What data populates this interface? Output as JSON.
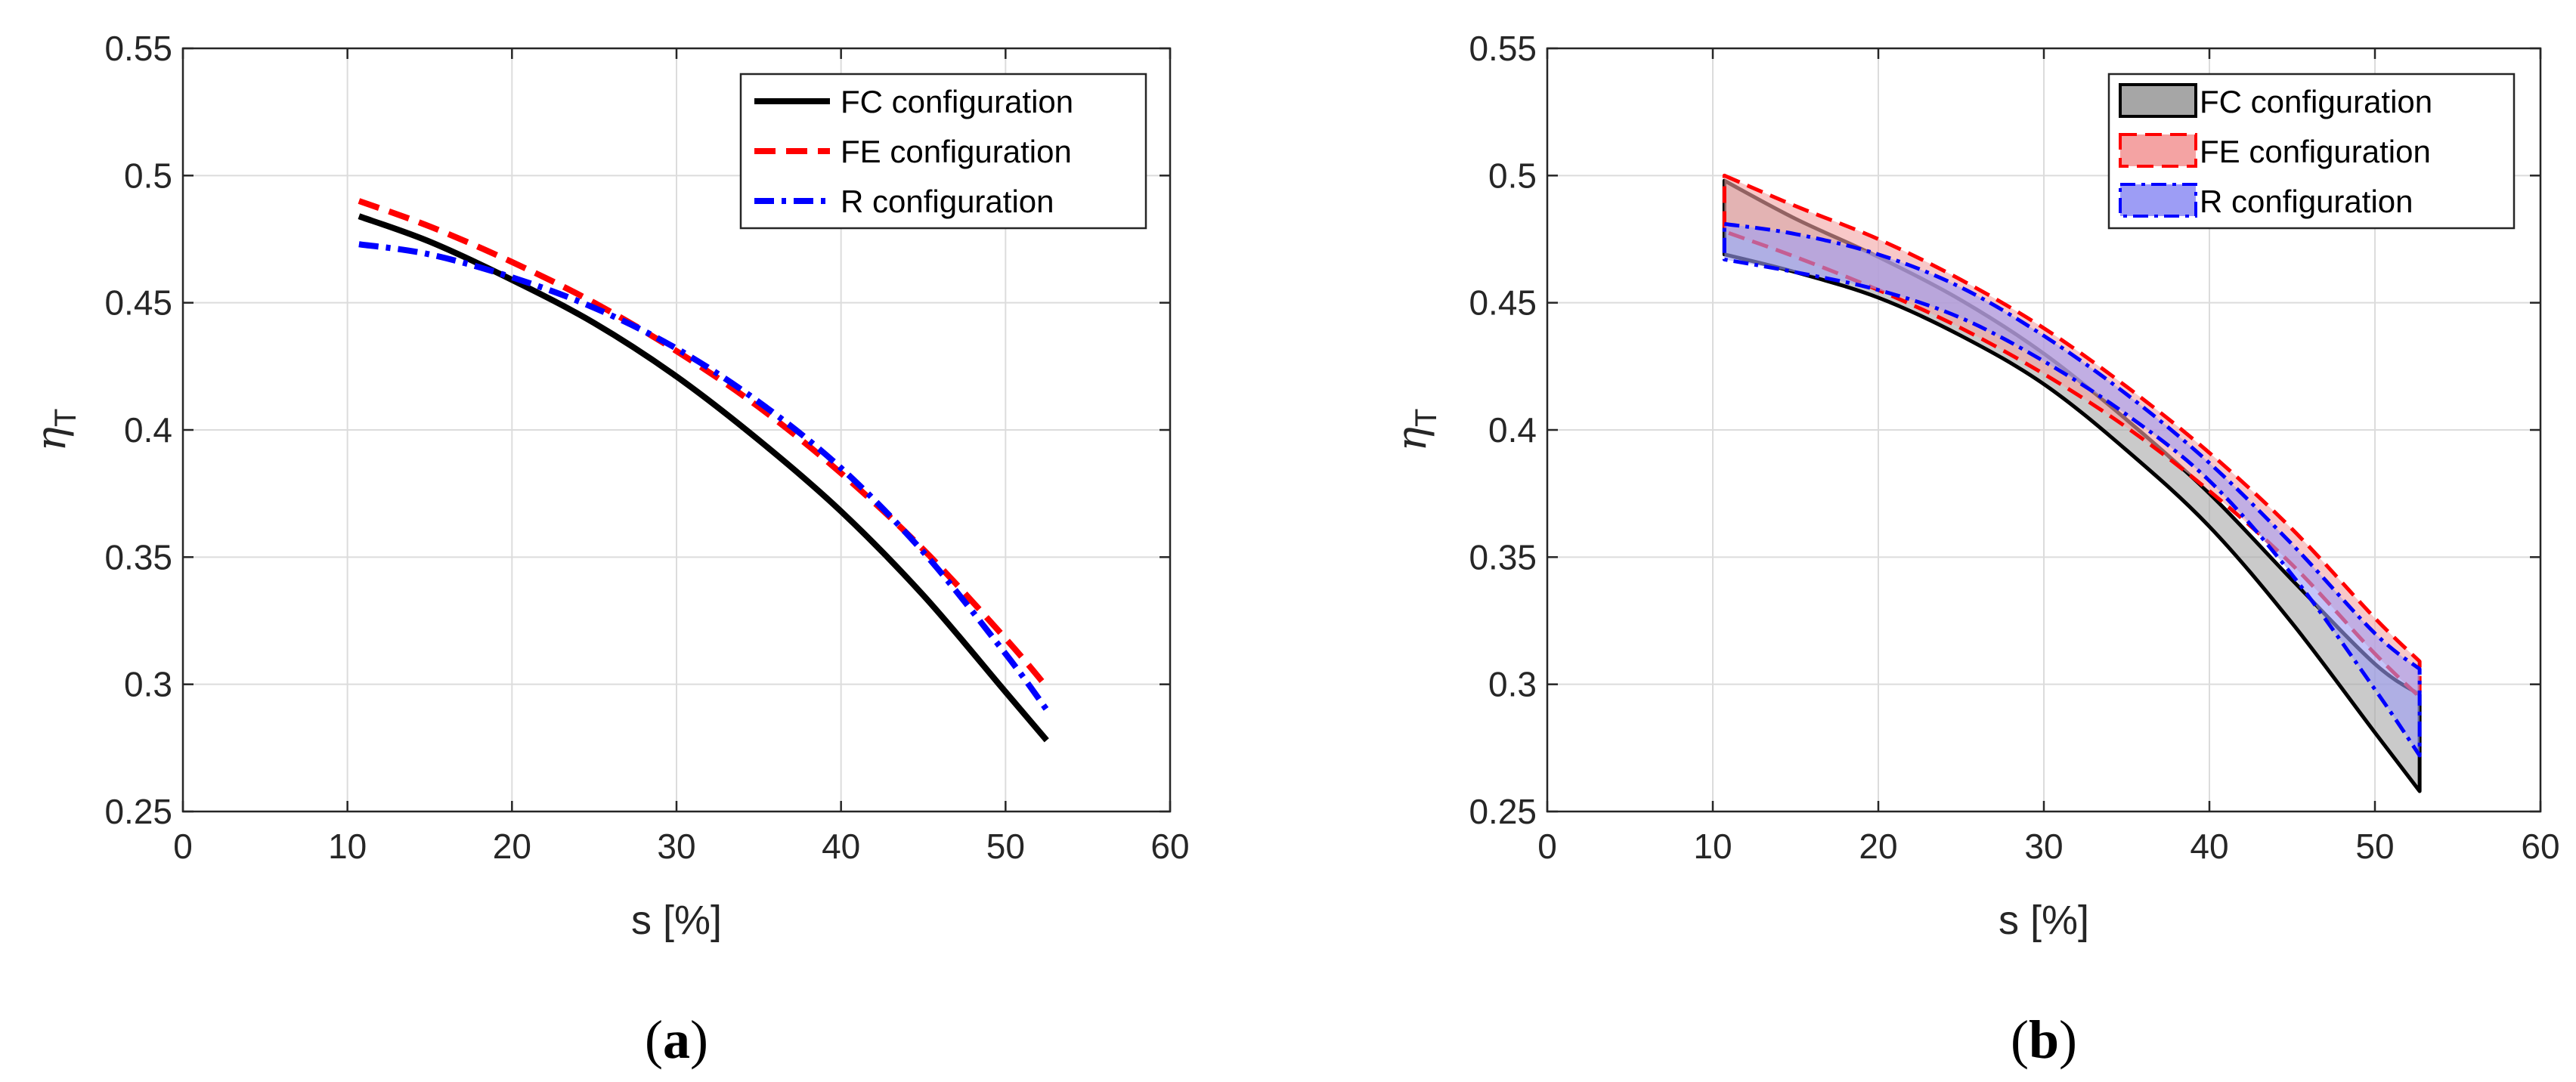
{
  "colors": {
    "FC": "#000000",
    "FE": "#ff0000",
    "R": "#0000ff",
    "FC_fill": "#a6a6a6",
    "FE_fill": "#f4a3a3",
    "R_fill": "#9d9df5",
    "grid": "#dcdcdc",
    "axis": "#262626"
  },
  "chart_data": [
    {
      "type": "line",
      "panel": "a",
      "caption_letter": "a",
      "caption_open": "(",
      "caption_close": ")",
      "xlabel": "s [%]",
      "ylabel_main": "η",
      "ylabel_sub": "T",
      "xlim": [
        0,
        60
      ],
      "ylim": [
        0.25,
        0.55
      ],
      "xticks": [
        0,
        10,
        20,
        30,
        40,
        50,
        60
      ],
      "xtick_labels": [
        "0",
        "10",
        "20",
        "30",
        "40",
        "50",
        "60"
      ],
      "yticks": [
        0.25,
        0.3,
        0.35,
        0.4,
        0.45,
        0.5,
        0.55
      ],
      "ytick_labels": [
        "0.25",
        "0.3",
        "0.35",
        "0.4",
        "0.45",
        "0.5",
        "0.55"
      ],
      "grid": true,
      "legend": "top-right",
      "x": [
        10.7,
        15,
        20,
        25,
        30,
        35,
        40,
        45,
        50,
        52.5
      ],
      "series": [
        {
          "key": "FC",
          "name": "FC configuration",
          "style": "solid",
          "values": [
            0.484,
            0.474,
            0.459,
            0.442,
            0.421,
            0.396,
            0.368,
            0.335,
            0.297,
            0.278
          ]
        },
        {
          "key": "FE",
          "name": "FE configuration",
          "style": "dashed",
          "values": [
            0.49,
            0.48,
            0.466,
            0.45,
            0.431,
            0.409,
            0.383,
            0.353,
            0.318,
            0.299
          ]
        },
        {
          "key": "R",
          "name": "R configuration",
          "style": "dashdot",
          "values": [
            0.473,
            0.469,
            0.46,
            0.448,
            0.432,
            0.411,
            0.385,
            0.352,
            0.312,
            0.29
          ]
        }
      ]
    },
    {
      "type": "area",
      "panel": "b",
      "caption_letter": "b",
      "caption_open": "(",
      "caption_close": ")",
      "xlabel": "s [%]",
      "ylabel_main": "η",
      "ylabel_sub": "T",
      "xlim": [
        0,
        60
      ],
      "ylim": [
        0.25,
        0.55
      ],
      "xticks": [
        0,
        10,
        20,
        30,
        40,
        50,
        60
      ],
      "xtick_labels": [
        "0",
        "10",
        "20",
        "30",
        "40",
        "50",
        "60"
      ],
      "yticks": [
        0.25,
        0.3,
        0.35,
        0.4,
        0.45,
        0.5,
        0.55
      ],
      "ytick_labels": [
        "0.25",
        "0.3",
        "0.35",
        "0.4",
        "0.45",
        "0.5",
        "0.55"
      ],
      "grid": true,
      "legend": "top-right",
      "x": [
        10.7,
        15,
        20,
        25,
        30,
        35,
        40,
        45,
        50,
        52.7
      ],
      "series": [
        {
          "key": "FC",
          "name": "FC configuration",
          "style": "solid",
          "upper": [
            0.498,
            0.483,
            0.468,
            0.451,
            0.43,
            0.404,
            0.375,
            0.341,
            0.308,
            0.296
          ],
          "lower": [
            0.469,
            0.462,
            0.452,
            0.437,
            0.418,
            0.392,
            0.362,
            0.324,
            0.281,
            0.258
          ]
        },
        {
          "key": "FE",
          "name": "FE configuration",
          "style": "dashed",
          "upper": [
            0.5,
            0.488,
            0.475,
            0.459,
            0.44,
            0.417,
            0.391,
            0.361,
            0.326,
            0.309
          ],
          "lower": [
            0.478,
            0.468,
            0.455,
            0.44,
            0.422,
            0.401,
            0.376,
            0.347,
            0.312,
            0.295
          ]
        },
        {
          "key": "R",
          "name": "R configuration",
          "style": "dashdot",
          "upper": [
            0.481,
            0.477,
            0.469,
            0.456,
            0.437,
            0.414,
            0.387,
            0.355,
            0.32,
            0.306
          ],
          "lower": [
            0.467,
            0.462,
            0.455,
            0.444,
            0.427,
            0.406,
            0.38,
            0.343,
            0.298,
            0.272
          ]
        }
      ]
    }
  ]
}
